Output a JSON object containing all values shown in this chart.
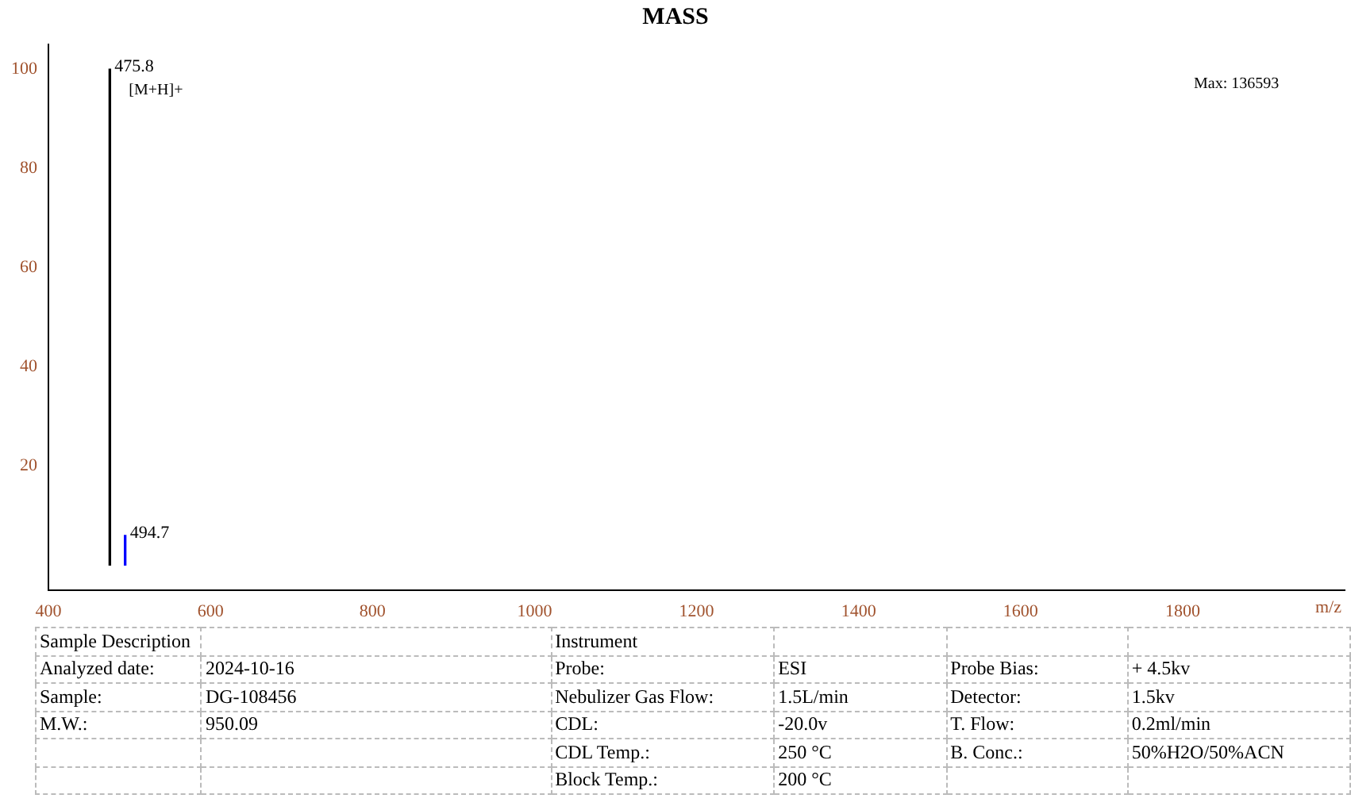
{
  "chart_data": {
    "type": "bar",
    "title": "MASS",
    "xlabel": "m/z",
    "x": [
      475.8,
      494.7
    ],
    "values": [
      100,
      6
    ],
    "colors": [
      "#000000",
      "#0000ff"
    ],
    "xlim": [
      400,
      2000
    ],
    "xticks": [
      400,
      600,
      800,
      1000,
      1200,
      1400,
      1600,
      1800
    ],
    "ylim": [
      -5,
      105
    ],
    "yticks": [
      20,
      40,
      60,
      80,
      100
    ],
    "grid": false,
    "legend": false,
    "annotations": [
      "[M+H]+",
      "Max: 136593",
      "Sample Description",
      "Instrument",
      "Analyzed date:",
      "2024-10-16",
      "Probe:",
      "ESI",
      "Probe Bias:",
      "+ 4.5kv",
      "Sample:",
      "DG-108456",
      "Nebulizer Gas Flow:",
      "1.5L/min",
      "Detector:",
      "1.5kv",
      "M.W.:",
      "950.09",
      "CDL:",
      "-20.0v",
      "T. Flow:",
      "0.2ml/min",
      "CDL Temp.:",
      "250 °C",
      "B. Conc.:",
      "50%H2O/50%ACN",
      "Block Temp.:",
      "200 °C",
      "475.8",
      "494.7"
    ]
  }
}
